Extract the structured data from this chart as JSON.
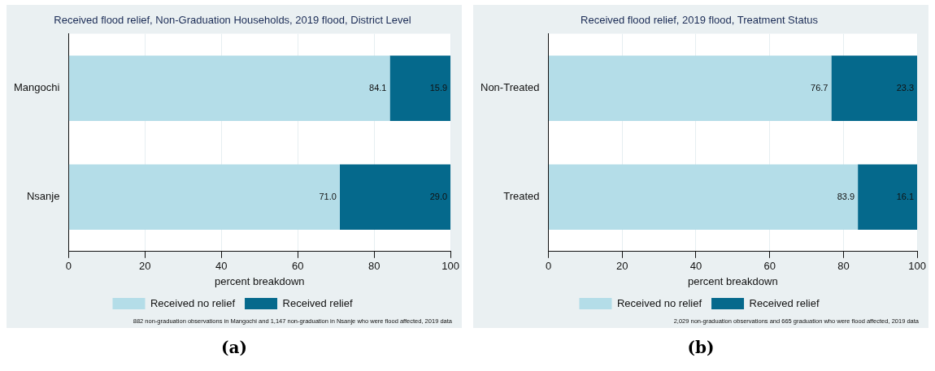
{
  "chart_data": [
    {
      "type": "bar",
      "orientation": "horizontal",
      "stacked": true,
      "title": "Received flood relief, Non-Graduation Households, 2019 flood, District Level",
      "xlabel": "percent breakdown",
      "categories": [
        "Mangochi",
        "Nsanje"
      ],
      "series": [
        {
          "name": "Received no relief",
          "color": "#b4dde8",
          "values": [
            84.1,
            71.0
          ],
          "value_labels": [
            "84.1",
            "71.0"
          ]
        },
        {
          "name": "Received relief",
          "color": "#05698c",
          "values": [
            15.9,
            29.0
          ],
          "value_labels": [
            "15.9",
            "29.0"
          ]
        }
      ],
      "xlim": [
        0,
        100
      ],
      "xticks": [
        0,
        20,
        40,
        60,
        80,
        100
      ],
      "grid": "x",
      "legend": "bottom",
      "annotations": [
        "882 non-graduation observations in Mangochi and 1,147 non-graduation in Nsanje who were flood affected, 2019 data",
        "(a)"
      ]
    },
    {
      "type": "bar",
      "orientation": "horizontal",
      "stacked": true,
      "title": "Received flood relief, 2019 flood, Treatment Status",
      "xlabel": "percent breakdown",
      "categories": [
        "Non-Treated",
        "Treated"
      ],
      "series": [
        {
          "name": "Received no relief",
          "color": "#b4dde8",
          "values": [
            76.7,
            83.9
          ],
          "value_labels": [
            "76.7",
            "83.9"
          ]
        },
        {
          "name": "Received relief",
          "color": "#05698c",
          "values": [
            23.3,
            16.1
          ],
          "value_labels": [
            "23.3",
            "16.1"
          ]
        }
      ],
      "xlim": [
        0,
        100
      ],
      "xticks": [
        0,
        20,
        40,
        60,
        80,
        100
      ],
      "grid": "x",
      "legend": "bottom",
      "annotations": [
        "2,029 non-graduation observations and 665 graduation who were flood affected, 2019 data",
        "(b)"
      ]
    }
  ]
}
